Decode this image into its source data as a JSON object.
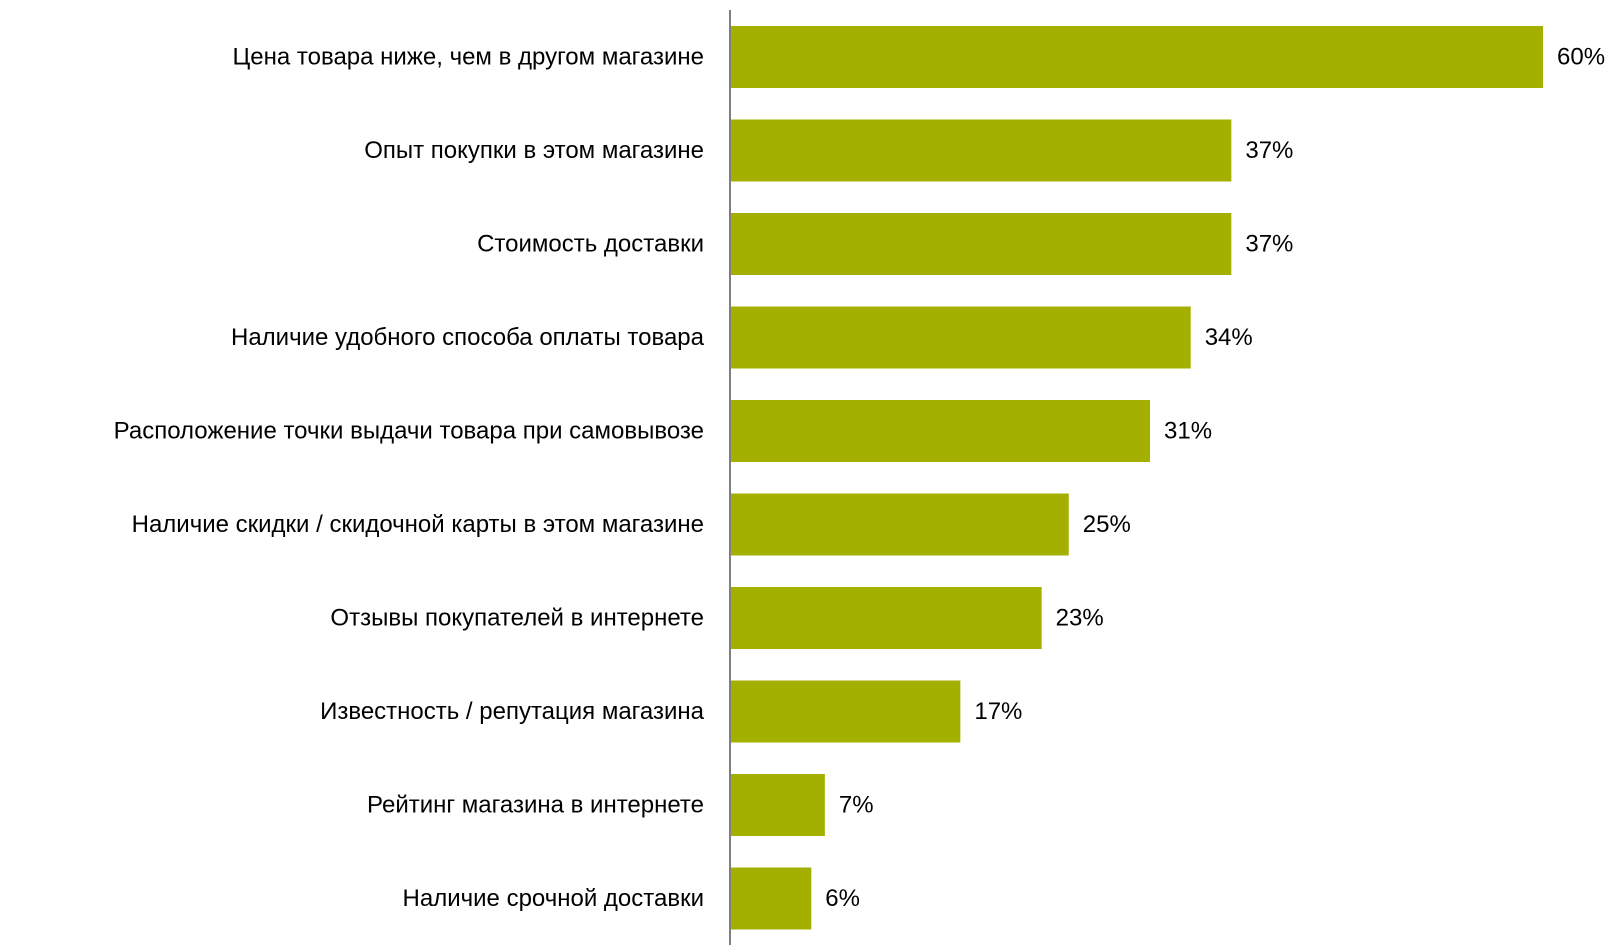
{
  "chart_data": {
    "type": "bar",
    "orientation": "horizontal",
    "title": "",
    "xlabel": "",
    "ylabel": "",
    "categories": [
      "Цена товара ниже, чем в другом магазине",
      "Опыт покупки в этом магазине",
      "Стоимость доставки",
      "Наличие  удобного способа оплаты товара",
      "Расположение точки выдачи  товара при самовывозе",
      "Наличие  скидки / скидочной карты в этом магазине",
      "Отзывы покупателей в интернете",
      "Известность / репутация магазина",
      "Рейтинг магазина в интернете",
      "Наличие  срочной доставки"
    ],
    "values": [
      60,
      37,
      37,
      34,
      31,
      25,
      23,
      17,
      7,
      6
    ],
    "value_labels": [
      "60%",
      "37%",
      "37%",
      "34%",
      "31%",
      "25%",
      "23%",
      "17%",
      "7%",
      "6%"
    ],
    "xlim": [
      0,
      60
    ],
    "grid": false,
    "legend": "none",
    "colors": {
      "bar": "#a3b000",
      "axis": "#7f7f7f",
      "text": "#000000"
    }
  }
}
